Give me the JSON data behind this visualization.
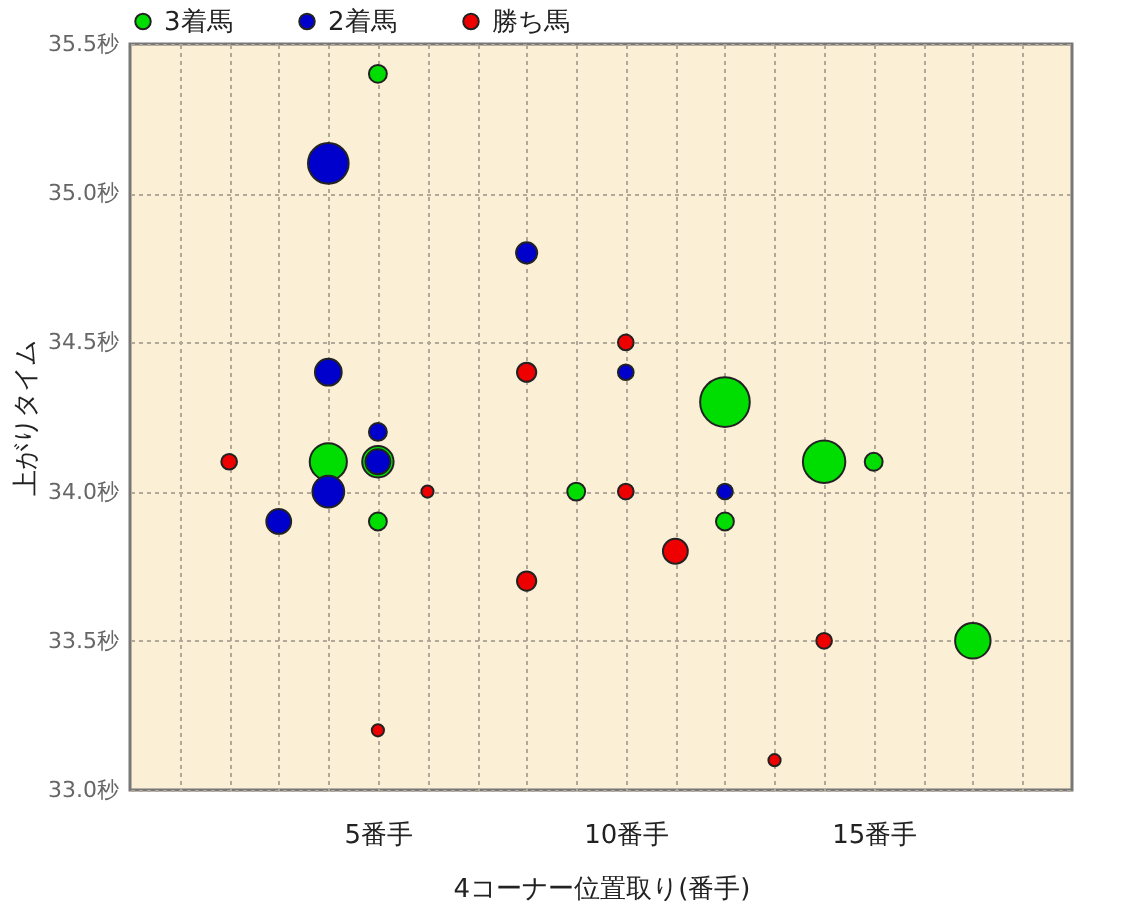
{
  "chart_data": {
    "type": "bubble",
    "xlabel": "4コーナー位置取り(番手)",
    "ylabel": "上がりタイム",
    "xlim": [
      0,
      19
    ],
    "xticks": [
      {
        "value": 1,
        "label": null
      },
      {
        "value": 2,
        "label": null
      },
      {
        "value": 3,
        "label": null
      },
      {
        "value": 4,
        "label": null
      },
      {
        "value": 5,
        "label": "5番手"
      },
      {
        "value": 6,
        "label": null
      },
      {
        "value": 7,
        "label": null
      },
      {
        "value": 8,
        "label": null
      },
      {
        "value": 9,
        "label": null
      },
      {
        "value": 10,
        "label": "10番手"
      },
      {
        "value": 11,
        "label": null
      },
      {
        "value": 12,
        "label": null
      },
      {
        "value": 13,
        "label": null
      },
      {
        "value": 14,
        "label": null
      },
      {
        "value": 15,
        "label": "15番手"
      },
      {
        "value": 16,
        "label": null
      },
      {
        "value": 17,
        "label": null
      },
      {
        "value": 18,
        "label": null
      }
    ],
    "ylim": [
      33.0,
      35.5
    ],
    "yticks": [
      {
        "value": 33.0,
        "label": "33.0秒"
      },
      {
        "value": 33.5,
        "label": "33.5秒"
      },
      {
        "value": 34.0,
        "label": "34.0秒"
      },
      {
        "value": 34.5,
        "label": "34.5秒"
      },
      {
        "value": 35.0,
        "label": "35.0秒"
      },
      {
        "value": 35.5,
        "label": "35.5秒"
      }
    ],
    "grid": true,
    "legend": "top",
    "series": [
      {
        "name": "3着馬",
        "color": "#00dd00",
        "x": [
          5,
          4,
          5,
          5,
          9,
          12,
          12,
          14,
          15,
          17
        ],
        "values": [
          35.4,
          34.1,
          34.1,
          33.9,
          34.0,
          34.3,
          33.9,
          34.1,
          34.1,
          33.5
        ],
        "sizes": [
          0.13,
          0.56,
          0.4,
          0.13,
          0.13,
          1,
          0.13,
          0.73,
          0.13,
          0.51
        ]
      },
      {
        "name": "2着馬",
        "color": "#0000cc",
        "x": [
          4,
          8,
          4,
          5,
          5,
          4,
          3,
          10,
          12
        ],
        "values": [
          35.1,
          34.8,
          34.4,
          34.2,
          34.1,
          34.0,
          33.9,
          34.4,
          34.0
        ],
        "sizes": [
          0.67,
          0.18,
          0.29,
          0.13,
          0.25,
          0.41,
          0.25,
          0.1,
          0.1
        ]
      },
      {
        "name": "勝ち馬",
        "color": "#ee0000",
        "x": [
          2,
          6,
          8,
          8,
          10,
          10,
          11,
          14,
          5,
          13
        ],
        "values": [
          34.1,
          34.0,
          34.4,
          33.7,
          34.5,
          34.0,
          33.8,
          33.5,
          33.2,
          33.1
        ],
        "sizes": [
          0.1,
          0.06,
          0.15,
          0.15,
          0.1,
          0.1,
          0.25,
          0.1,
          0.06,
          0.06
        ]
      }
    ]
  }
}
